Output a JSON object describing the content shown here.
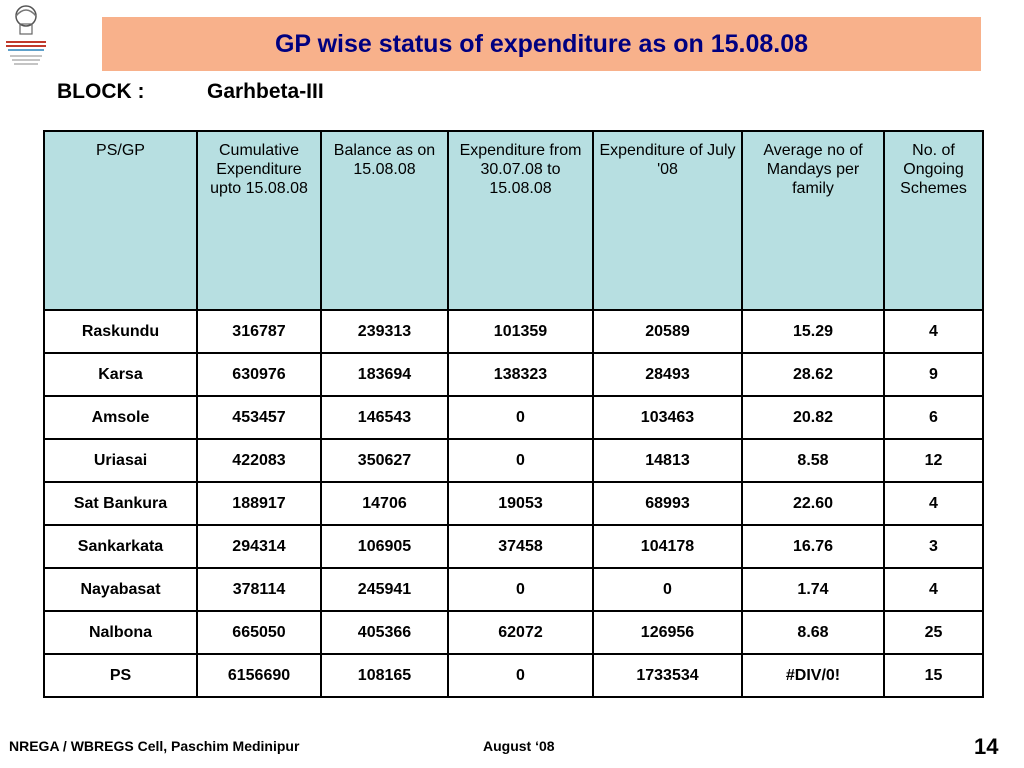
{
  "title": "GP wise status of expenditure as on 15.08.08",
  "block": {
    "label": "BLOCK :",
    "value": "Garhbeta-III"
  },
  "table": {
    "headers": [
      "PS/GP",
      "Cumulative Expenditure upto 15.08.08",
      "Balance as on 15.08.08",
      "Expenditure from 30.07.08 to 15.08.08",
      "Expenditure of  July '08",
      "Average no of Mandays per family",
      "No. of Ongoing Schemes"
    ],
    "rows": [
      [
        "Raskundu",
        "316787",
        "239313",
        "101359",
        "20589",
        "15.29",
        "4"
      ],
      [
        "Karsa",
        "630976",
        "183694",
        "138323",
        "28493",
        "28.62",
        "9"
      ],
      [
        "Amsole",
        "453457",
        "146543",
        "0",
        "103463",
        "20.82",
        "6"
      ],
      [
        "Uriasai",
        "422083",
        "350627",
        "0",
        "14813",
        "8.58",
        "12"
      ],
      [
        "Sat Bankura",
        "188917",
        "14706",
        "19053",
        "68993",
        "22.60",
        "4"
      ],
      [
        "Sankarkata",
        "294314",
        "106905",
        "37458",
        "104178",
        "16.76",
        "3"
      ],
      [
        "Nayabasat",
        "378114",
        "245941",
        "0",
        "0",
        "1.74",
        "4"
      ],
      [
        "Nalbona",
        "665050",
        "405366",
        "62072",
        "126956",
        "8.68",
        "25"
      ],
      [
        "PS",
        "6156690",
        "108165",
        "0",
        "1733534",
        "#DIV/0!",
        "15"
      ]
    ]
  },
  "footer": {
    "left": "NREGA / WBREGS Cell, Paschim Medinipur",
    "middle": "August ‘08",
    "page_number": "14"
  },
  "colors": {
    "title_bg": "#f8b18b",
    "title_text": "#000080",
    "header_bg": "#b7dfe1"
  },
  "icons": {
    "logo": "nrega-logo-icon"
  }
}
